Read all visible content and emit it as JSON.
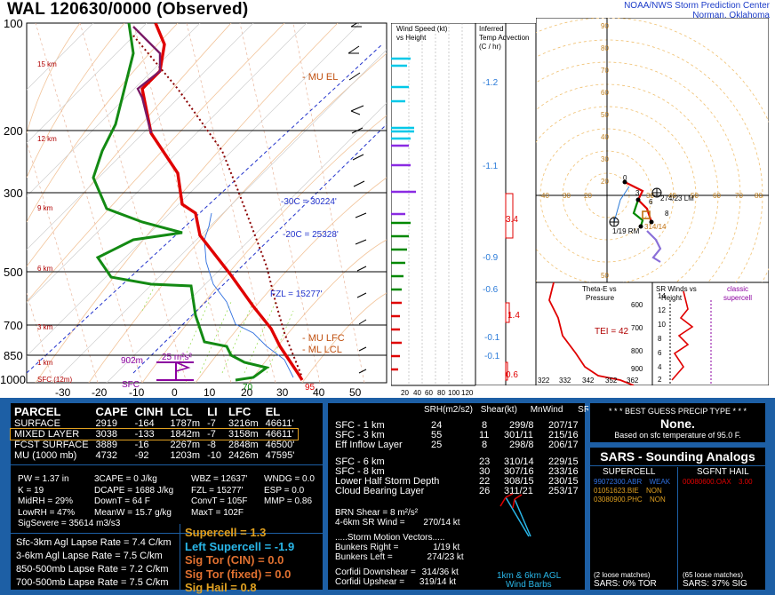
{
  "header": {
    "title": "WAL   120630/0000  (Observed)",
    "org_line1": "NOAA/NWS Storm Prediction Center",
    "org_line2": "Norman, Oklahoma"
  },
  "skewt": {
    "pressure_labels": [
      "100",
      "200",
      "300",
      "500",
      "700",
      "850",
      "1000"
    ],
    "height_labels": [
      "15 km",
      "12 km",
      "9 km",
      "6 km",
      "3 km",
      "1 km",
      "SFC (12m)"
    ],
    "temp_ticks": [
      "-30",
      "-20",
      "-10",
      "0",
      "10",
      "20",
      "30",
      "40",
      "50"
    ],
    "annotations": {
      "mu_el": "- MU EL",
      "iso30": "-30C = 30224'",
      "iso20": "-20C = 25328'",
      "fzl": "FZL = 15277'",
      "mu_lfc": "- MU LFC",
      "ml_lcl": "- ML LCL",
      "h902": "902m",
      "srh": "25 m²s²",
      "sfc": "SFC",
      "t95": "95",
      "td70": "70"
    }
  },
  "wind_panel": {
    "title1": "Wind Speed (kt)",
    "title2": "vs Height",
    "axis": [
      "20",
      "40",
      "60",
      "80",
      "100",
      "120"
    ]
  },
  "tadv_panel": {
    "title1": "Inferred",
    "title2": "Temp Advection",
    "title3": "(C / hr)",
    "values": [
      "-1.2",
      "-1.1",
      "3.4",
      "-0.9",
      "-0.6",
      "1.4",
      "-0.1",
      "-0.1",
      "0.6"
    ]
  },
  "hodograph": {
    "rings": [
      "10",
      "20",
      "30",
      "40",
      "50",
      "60",
      "70",
      "80",
      "90"
    ],
    "xticks": [
      "40",
      "30",
      "20",
      "10",
      "10",
      "20",
      "30",
      "40",
      "50",
      "60",
      "70",
      "80"
    ],
    "lm": "274/23 LM",
    "rm": "1/19 RM",
    "mean": "314/14",
    "pts": [
      "0",
      "3",
      "6",
      "8"
    ]
  },
  "thetae_panel": {
    "title1": "Theta-E vs",
    "title2": "Pressure",
    "tei": "TEI = 42",
    "xlabels": [
      "322",
      "332",
      "342",
      "352",
      "362"
    ],
    "ylabels": [
      "600",
      "700",
      "800",
      "900"
    ]
  },
  "srwind_panel": {
    "title1": "SR Winds vs",
    "title2": "Height",
    "legend1": "classic",
    "legend2": "supercell",
    "ylabels": [
      "14",
      "12",
      "10",
      "8",
      "6",
      "4",
      "2"
    ]
  },
  "parcel_table": {
    "headers": [
      "PARCEL",
      "CAPE",
      "CINH",
      "LCL",
      "LI",
      "LFC",
      "EL"
    ],
    "rows": [
      [
        "SURFACE",
        "2919",
        "-164",
        "1787m",
        "-7",
        "3216m",
        "46611'"
      ],
      [
        "MIXED LAYER",
        "3038",
        "-133",
        "1842m",
        "-7",
        "3158m",
        "46611'"
      ],
      [
        "FCST SURFACE",
        "3889",
        "-16",
        "2267m",
        "-8",
        "2848m",
        "46500'"
      ],
      [
        "MU    (1000 mb)",
        "4732",
        "-92",
        "1203m",
        "-10",
        "2426m",
        "47595'"
      ]
    ]
  },
  "indices": {
    "col1": [
      "PW = 1.37 in",
      "K = 19",
      "MidRH = 29%",
      "LowRH = 47%",
      "SigSevere = 35614 m3/s3"
    ],
    "col2": [
      "3CAPE = 0 J/kg",
      "DCAPE = 1688 J/kg",
      "DownT = 64 F",
      "MeanW = 15.7 g/kg"
    ],
    "col3": [
      "WBZ = 12637'",
      "FZL = 15277'",
      "ConvT = 105F",
      "MaxT = 102F"
    ],
    "col4": [
      "WNDG = 0.0",
      "ESP = 0.0",
      "MMP = 0.86"
    ]
  },
  "lapse": [
    [
      "Sfc-3km Agl Lapse Rate =",
      "7.4 C/km"
    ],
    [
      "3-6km Agl Lapse Rate =",
      "7.5 C/km"
    ],
    [
      "850-500mb Lapse Rate =",
      "7.2 C/km"
    ],
    [
      "700-500mb Lapse Rate =",
      "7.5 C/km"
    ]
  ],
  "composites": {
    "supercell": "Supercell = 1.3",
    "left_supercell": "Left Supercell = -1.9",
    "sigtor_cin": "Sig Tor (CIN) = 0.0",
    "sigtor_fixed": "Sig Tor (fixed) = 0.0",
    "sighail": "Sig Hail = 0.8"
  },
  "kinematics": {
    "headers": [
      "SRH(m2/s2)",
      "Shear(kt)",
      "MnWind",
      "SRW"
    ],
    "rows": [
      [
        "SFC - 1 km",
        "24",
        "8",
        "299/8",
        "207/17"
      ],
      [
        "SFC - 3 km",
        "55",
        "11",
        "301/11",
        "215/16"
      ],
      [
        "Eff Inflow Layer",
        "25",
        "8",
        "298/8",
        "206/17"
      ],
      [
        "SFC - 6 km",
        "",
        "23",
        "310/14",
        "229/15"
      ],
      [
        "SFC - 8 km",
        "",
        "30",
        "307/16",
        "233/16"
      ],
      [
        "Lower Half Storm Depth",
        "",
        "22",
        "308/15",
        "230/15"
      ],
      [
        "Cloud Bearing Layer",
        "",
        "26",
        "311/21",
        "253/17"
      ]
    ],
    "brn": "BRN Shear = 8 m²/s²",
    "srw46": "4-6km SR Wind =",
    "srw46_val": "270/14 kt",
    "motion_title": ".....Storm Motion Vectors.....",
    "bunk_r": "Bunkers Right =",
    "bunk_r_val": "1/19 kt",
    "bunk_l": "Bunkers Left =",
    "bunk_l_val": "274/23 kt",
    "corf_dn": "Corfidi Downshear =",
    "corf_dn_val": "314/36 kt",
    "corf_up": "Corfidi Upshear =",
    "corf_up_val": "319/14 kt",
    "barb_label1": "1km & 6km AGL",
    "barb_label2": "Wind Barbs"
  },
  "precip": {
    "title": "* * * BEST GUESS PRECIP TYPE * * *",
    "value": "None.",
    "note": "Based on sfc temperature of 95.0 F."
  },
  "sars": {
    "title": "SARS - Sounding Analogs",
    "supercell_header": "SUPERCELL",
    "hail_header": "SGFNT HAIL",
    "supercell_rows": [
      [
        "99072300.ABR",
        "WEAK"
      ],
      [
        "01051623.BIE",
        "NON"
      ],
      [
        "03080900.PHC",
        "NON"
      ]
    ],
    "hail_rows": [
      [
        "00080600.OAX",
        "3.00"
      ]
    ],
    "loose1": "(2 loose matches)",
    "loose2": "(65 loose matches)",
    "tor": "SARS:  0% TOR",
    "sig": "SARS:  37% SIG"
  },
  "colors": {
    "bg_blue": "#1d5fa5",
    "temp": "#e00000",
    "dewpt": "#008800",
    "cyan": "#00c8e8",
    "purple": "#8a2be2",
    "gold": "#e0a020"
  }
}
